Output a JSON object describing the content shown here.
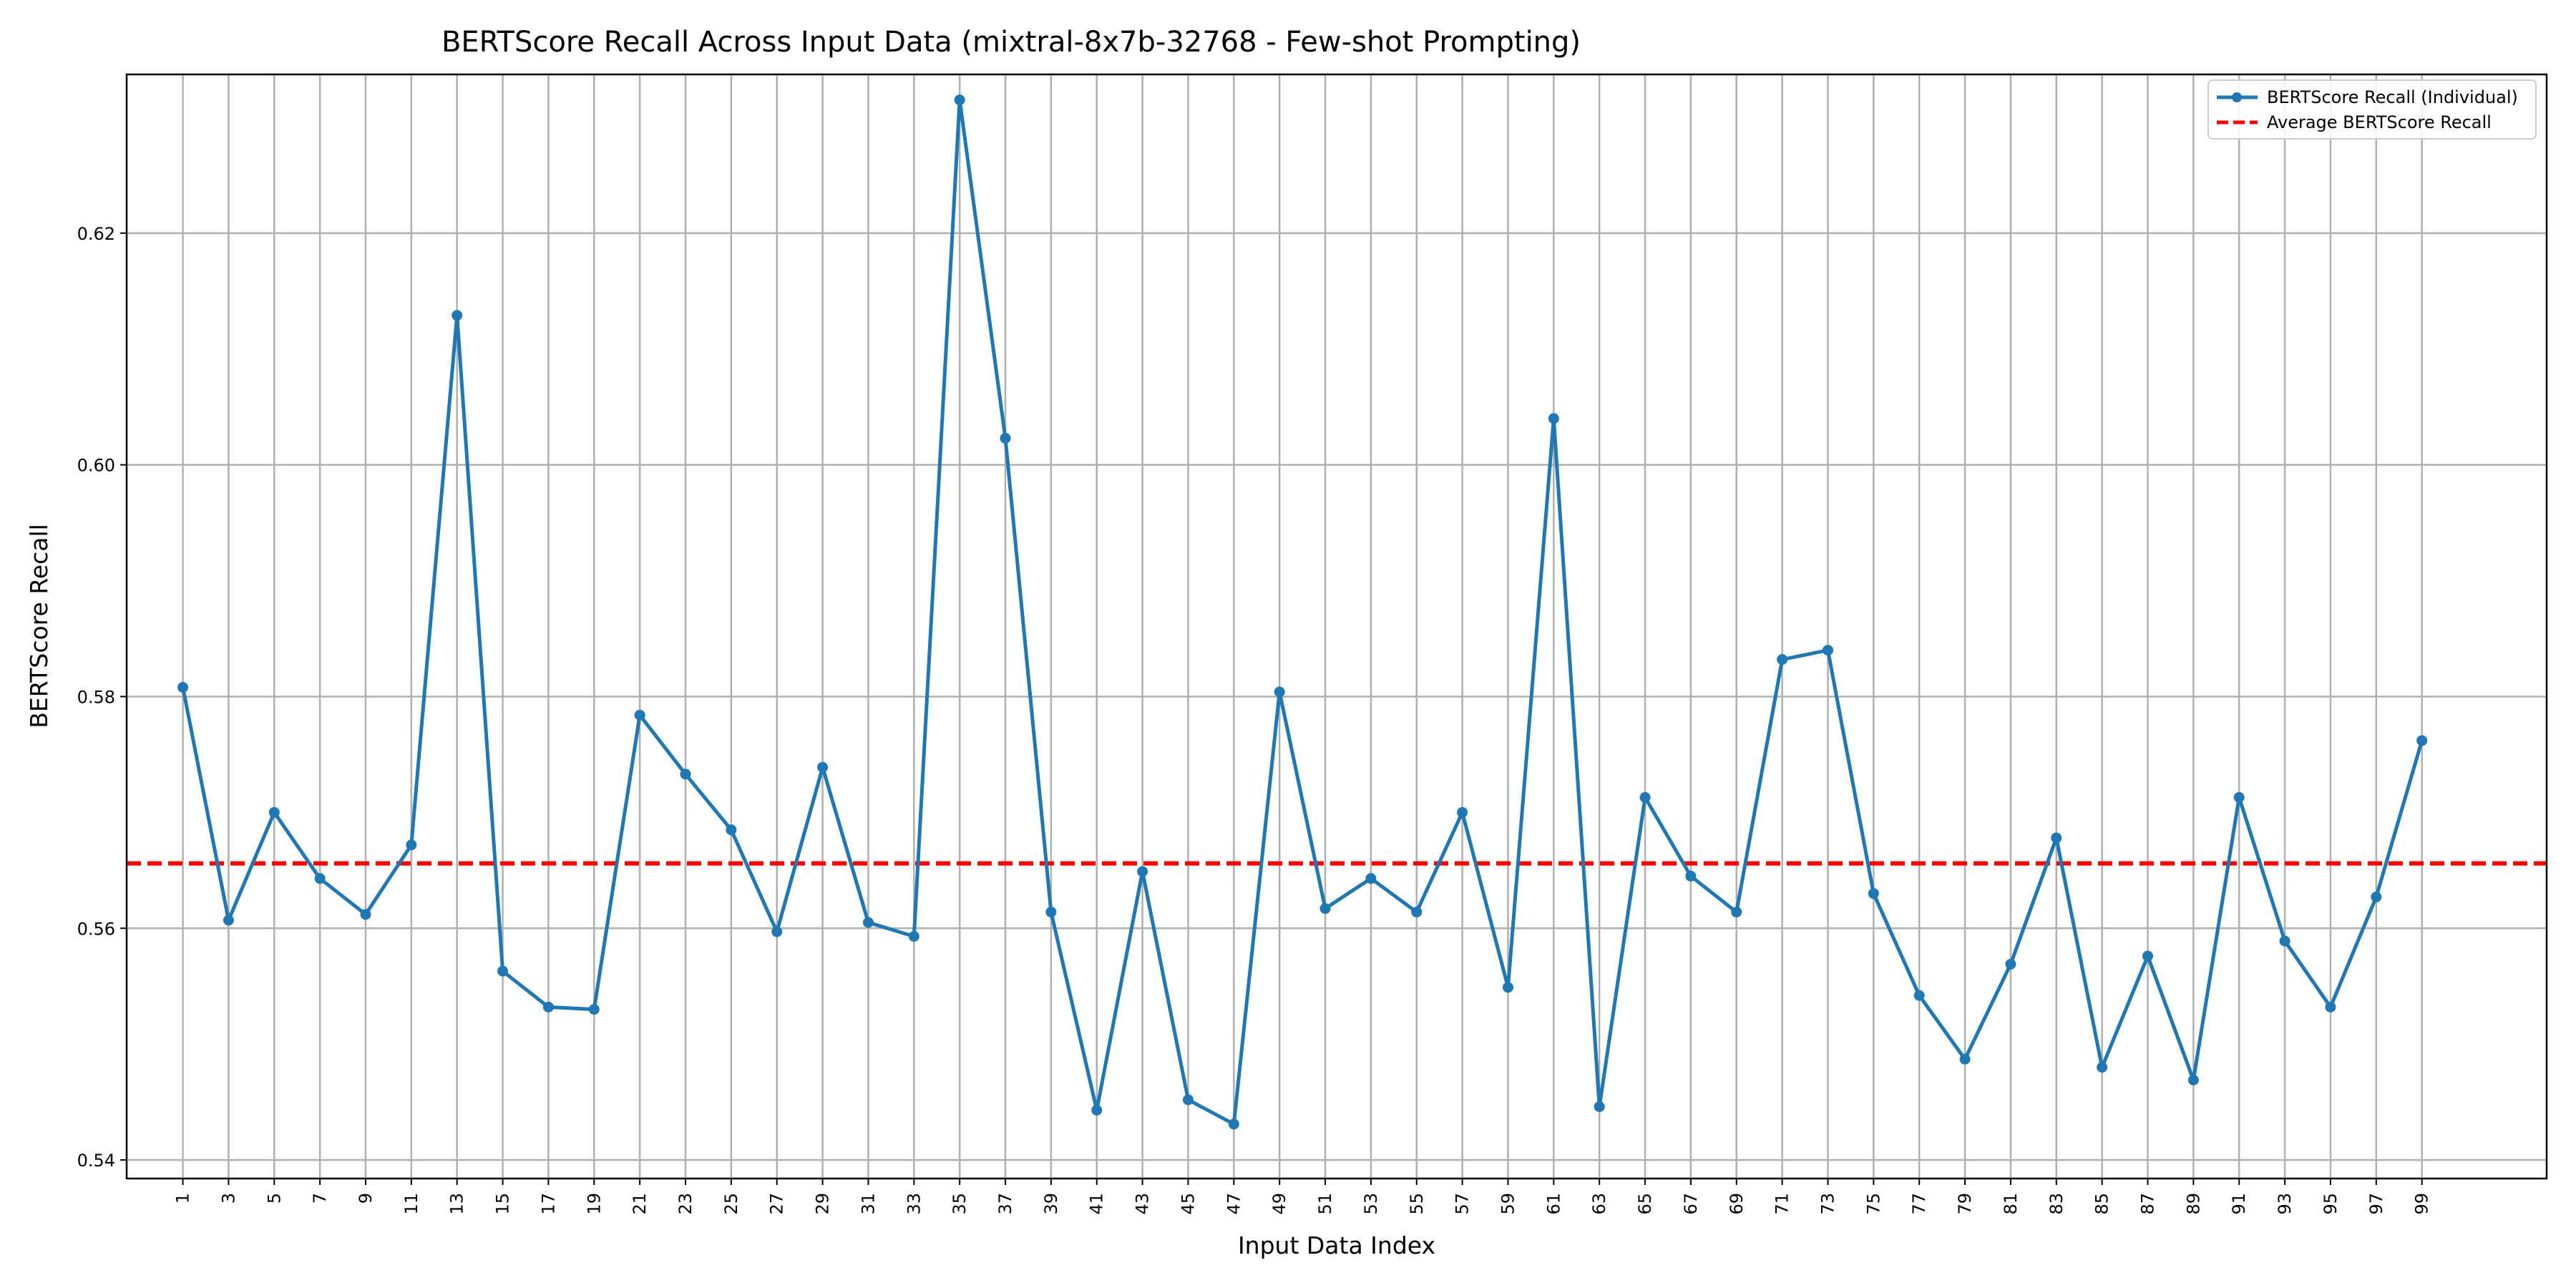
{
  "chart_data": {
    "type": "line",
    "title": "BERTScore Recall Across Input Data (mixtral-8x7b-32768 - Few-shot Prompting)",
    "xlabel": "Input Data Index",
    "ylabel": "BERTScore Recall",
    "ylim": [
      0.5384,
      0.6337
    ],
    "xlim": [
      -1.46,
      104.46
    ],
    "grid": true,
    "legend_position": "top-right",
    "y_ticks": [
      "0.54",
      "0.56",
      "0.58",
      "0.60",
      "0.62"
    ],
    "x": [
      1,
      3,
      5,
      7,
      9,
      11,
      13,
      15,
      17,
      19,
      21,
      23,
      25,
      27,
      29,
      31,
      33,
      35,
      37,
      39,
      41,
      43,
      45,
      47,
      49,
      51,
      53,
      55,
      57,
      59,
      61,
      63,
      65,
      67,
      69,
      71,
      73,
      75,
      77,
      79,
      81,
      83,
      85,
      87,
      89,
      91,
      93,
      95,
      97,
      99
    ],
    "series": [
      {
        "name": "BERTScore Recall (Individual)",
        "color": "#1f77b4",
        "style": "solid-with-markers",
        "values": [
          0.5808,
          0.5607,
          0.57,
          0.5643,
          0.5612,
          0.5672,
          0.6129,
          0.5563,
          0.5532,
          0.553,
          0.5784,
          0.5733,
          0.5685,
          0.5597,
          0.5739,
          0.5605,
          0.5593,
          0.6315,
          0.6023,
          0.5614,
          0.5443,
          0.5649,
          0.5452,
          0.5431,
          0.5804,
          0.5617,
          0.5643,
          0.5614,
          0.57,
          0.5549,
          0.604,
          0.5446,
          0.5713,
          0.5645,
          0.5614,
          0.5832,
          0.584,
          0.563,
          0.5542,
          0.5487,
          0.5569,
          0.5678,
          0.548,
          0.5576,
          0.5469,
          0.5713,
          0.5589,
          0.5532,
          0.5627,
          0.5762
        ]
      },
      {
        "name": "Average BERTScore Recall",
        "color": "#ff0000",
        "style": "dashed",
        "value": 0.5656
      }
    ]
  }
}
